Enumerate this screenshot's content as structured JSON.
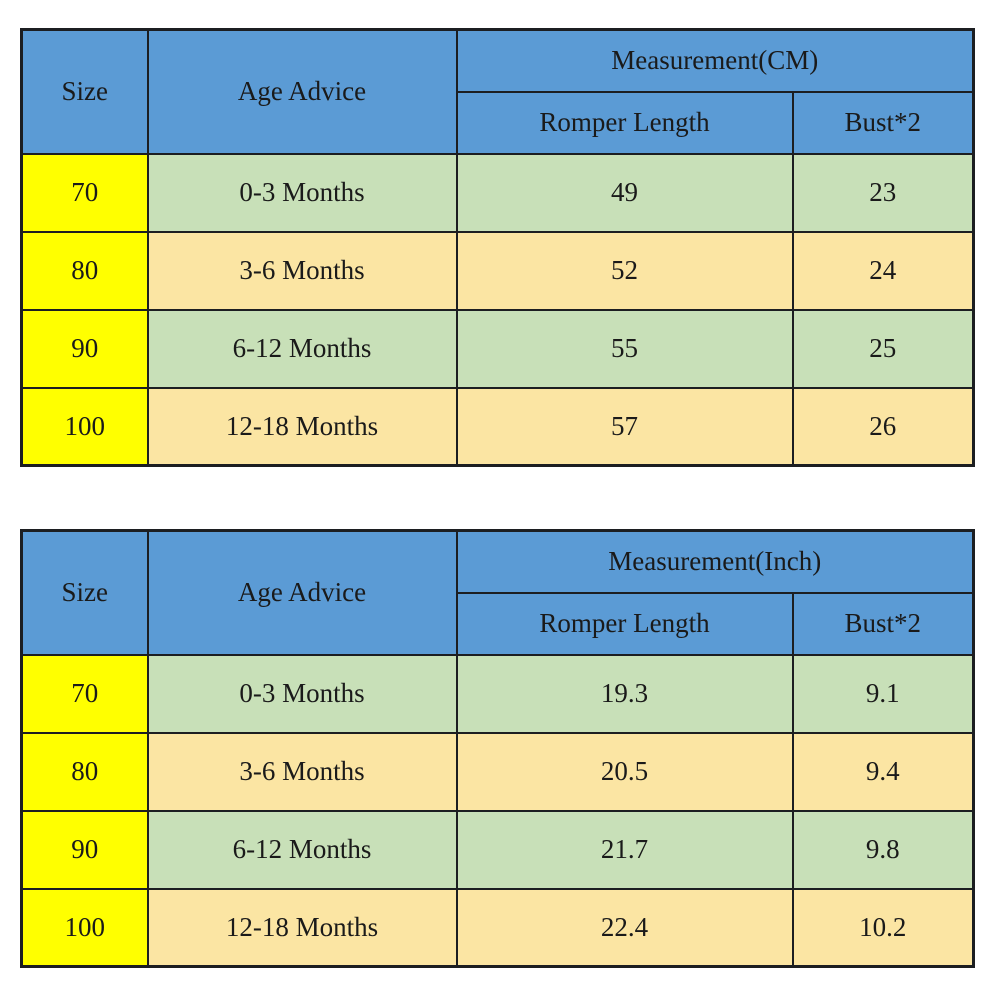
{
  "colors": {
    "page_bg": "#ffffff",
    "header_bg": "#5b9bd5",
    "size_col_bg": "#ffff00",
    "row_green": "#c8e0b8",
    "row_tan": "#fbe5a3",
    "border": "#1c1e21",
    "text": "#1a1a1a"
  },
  "chart_data": [
    {
      "type": "table",
      "title": "Measurement(CM)",
      "unit": "CM",
      "columns": [
        "Size",
        "Age Advice",
        "Romper Length",
        "Bust*2"
      ],
      "header": {
        "size": "Size",
        "age_advice": "Age Advice",
        "measurement": "Measurement(CM)",
        "romper_length": "Romper Length",
        "bust": "Bust*2"
      },
      "rows": [
        {
          "size": "70",
          "age_advice": "0-3 Months",
          "romper_length": "49",
          "bust": "23"
        },
        {
          "size": "80",
          "age_advice": "3-6 Months",
          "romper_length": "52",
          "bust": "24"
        },
        {
          "size": "90",
          "age_advice": "6-12 Months",
          "romper_length": "55",
          "bust": "25"
        },
        {
          "size": "100",
          "age_advice": "12-18 Months",
          "romper_length": "57",
          "bust": "26"
        }
      ]
    },
    {
      "type": "table",
      "title": "Measurement(Inch)",
      "unit": "Inch",
      "columns": [
        "Size",
        "Age Advice",
        "Romper Length",
        "Bust*2"
      ],
      "header": {
        "size": "Size",
        "age_advice": "Age Advice",
        "measurement": "Measurement(Inch)",
        "romper_length": "Romper Length",
        "bust": "Bust*2"
      },
      "rows": [
        {
          "size": "70",
          "age_advice": "0-3 Months",
          "romper_length": "19.3",
          "bust": "9.1"
        },
        {
          "size": "80",
          "age_advice": "3-6 Months",
          "romper_length": "20.5",
          "bust": "9.4"
        },
        {
          "size": "90",
          "age_advice": "6-12 Months",
          "romper_length": "21.7",
          "bust": "9.8"
        },
        {
          "size": "100",
          "age_advice": "12-18 Months",
          "romper_length": "22.4",
          "bust": "10.2"
        }
      ]
    }
  ]
}
